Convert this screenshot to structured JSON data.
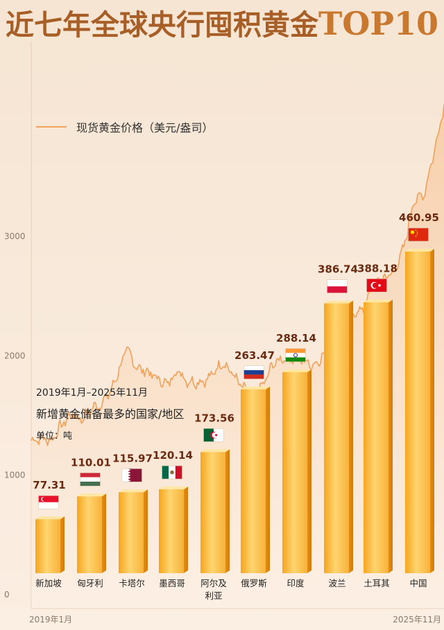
{
  "title": {
    "main": "近七年全球央行囤积黄金",
    "suffix": "TOP10"
  },
  "legend": {
    "label": "现货黄金价格（美元/盎司）"
  },
  "info": {
    "range": "2019年1月–2025年11月",
    "desc": "新增黄金储备最多的国家/地区",
    "unit": "单位：吨"
  },
  "colors": {
    "background": "#f7e7d6",
    "price_line": "#f0a15a",
    "bar_light": "#ffd36b",
    "bar_dark": "#f2a11e",
    "value_text": "#6a2a12"
  },
  "chart_data": [
    {
      "type": "bar",
      "unit": "吨",
      "categories": [
        "新加坡",
        "匈牙利",
        "卡塔尔",
        "墨西哥",
        "阿尔及利亚",
        "俄罗斯",
        "印度",
        "波兰",
        "土耳其",
        "中国"
      ],
      "category_lines": [
        [
          "新加坡"
        ],
        [
          "匈牙利"
        ],
        [
          "卡塔尔"
        ],
        [
          "墨西哥"
        ],
        [
          "阿尔及",
          "利亚"
        ],
        [
          "俄罗斯"
        ],
        [
          "印度"
        ],
        [
          "波兰"
        ],
        [
          "土耳其"
        ],
        [
          "中国"
        ]
      ],
      "flag_icons": [
        "singapore-flag-icon",
        "hungary-flag-icon",
        "qatar-flag-icon",
        "mexico-flag-icon",
        "algeria-flag-icon",
        "russia-flag-icon",
        "india-flag-icon",
        "poland-flag-icon",
        "turkey-flag-icon",
        "china-flag-icon"
      ],
      "values": [
        77.31,
        110.01,
        115.97,
        120.14,
        173.56,
        263.47,
        288.14,
        386.74,
        388.18,
        460.95
      ]
    },
    {
      "type": "area",
      "ylabel": "现货黄金价格（美元/盎司）",
      "ylim": [
        0,
        3300
      ],
      "yticks": [
        0,
        1000,
        2000,
        3000
      ],
      "xlabels": [
        "2019年1月",
        "2025年11月"
      ],
      "x": [
        "2019-01",
        "2019-03",
        "2019-05",
        "2019-07",
        "2019-09",
        "2019-11",
        "2020-01",
        "2020-03",
        "2020-05",
        "2020-08",
        "2020-10",
        "2020-12",
        "2021-02",
        "2021-04",
        "2021-06",
        "2021-08",
        "2021-10",
        "2021-12",
        "2022-02",
        "2022-03",
        "2022-05",
        "2022-07",
        "2022-09",
        "2022-11",
        "2023-01",
        "2023-03",
        "2023-05",
        "2023-07",
        "2023-09",
        "2023-11",
        "2024-01",
        "2024-03",
        "2024-05",
        "2024-07",
        "2024-09",
        "2024-11",
        "2025-01",
        "2025-03",
        "2025-05",
        "2025-07",
        "2025-09",
        "2025-11"
      ],
      "values": [
        1290,
        1310,
        1290,
        1420,
        1510,
        1470,
        1560,
        1600,
        1720,
        2060,
        1900,
        1870,
        1810,
        1760,
        1880,
        1790,
        1780,
        1800,
        1900,
        1950,
        1850,
        1730,
        1660,
        1750,
        1930,
        1980,
        1980,
        1960,
        1920,
        2000,
        2050,
        2160,
        2350,
        2400,
        2600,
        2650,
        2700,
        2900,
        3300,
        3350,
        3700,
        4100
      ]
    }
  ]
}
